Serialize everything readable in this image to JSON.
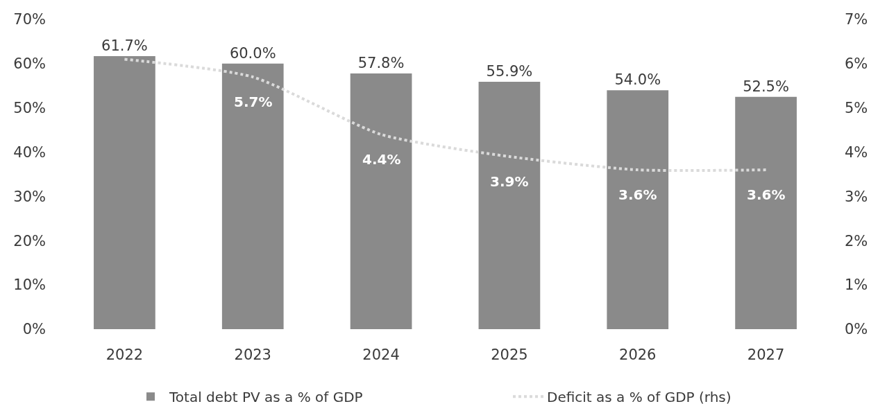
{
  "chart_data": {
    "type": "bar",
    "categories": [
      "2022",
      "2023",
      "2024",
      "2025",
      "2026",
      "2027"
    ],
    "series": [
      {
        "name": "Total debt PV as a % of GDP",
        "color": "#8a8a8a",
        "values": [
          61.7,
          60.0,
          57.8,
          55.9,
          54.0,
          52.5
        ],
        "value_labels": [
          "61.7%",
          "60.0%",
          "57.8%",
          "55.9%",
          "54.0%",
          "52.5%"
        ]
      },
      {
        "name": "Deficit as a % of GDP (rhs)",
        "type": "line",
        "axis": "y2",
        "color": "#dadada",
        "line_style": "dotted",
        "values": [
          6.1,
          5.7,
          4.4,
          3.9,
          3.6,
          3.6
        ],
        "value_labels": [
          null,
          "5.7%",
          "4.4%",
          "3.9%",
          "3.6%",
          "3.6%"
        ]
      }
    ],
    "ylim": [
      0,
      70
    ],
    "yticks": [
      {
        "value": 0,
        "label": "0%"
      },
      {
        "value": 10,
        "label": "10%"
      },
      {
        "value": 20,
        "label": "20%"
      },
      {
        "value": 30,
        "label": "30%"
      },
      {
        "value": 40,
        "label": "40%"
      },
      {
        "value": 50,
        "label": "50%"
      },
      {
        "value": 60,
        "label": "60%"
      },
      {
        "value": 70,
        "label": "70%"
      }
    ],
    "y2lim": [
      0,
      7
    ],
    "y2ticks": [
      {
        "value": 0,
        "label": "0%"
      },
      {
        "value": 1,
        "label": "1%"
      },
      {
        "value": 2,
        "label": "2%"
      },
      {
        "value": 3,
        "label": "3%"
      },
      {
        "value": 4,
        "label": "4%"
      },
      {
        "value": 5,
        "label": "5%"
      },
      {
        "value": 6,
        "label": "6%"
      },
      {
        "value": 7,
        "label": "7%"
      }
    ],
    "legend": "bottom"
  }
}
